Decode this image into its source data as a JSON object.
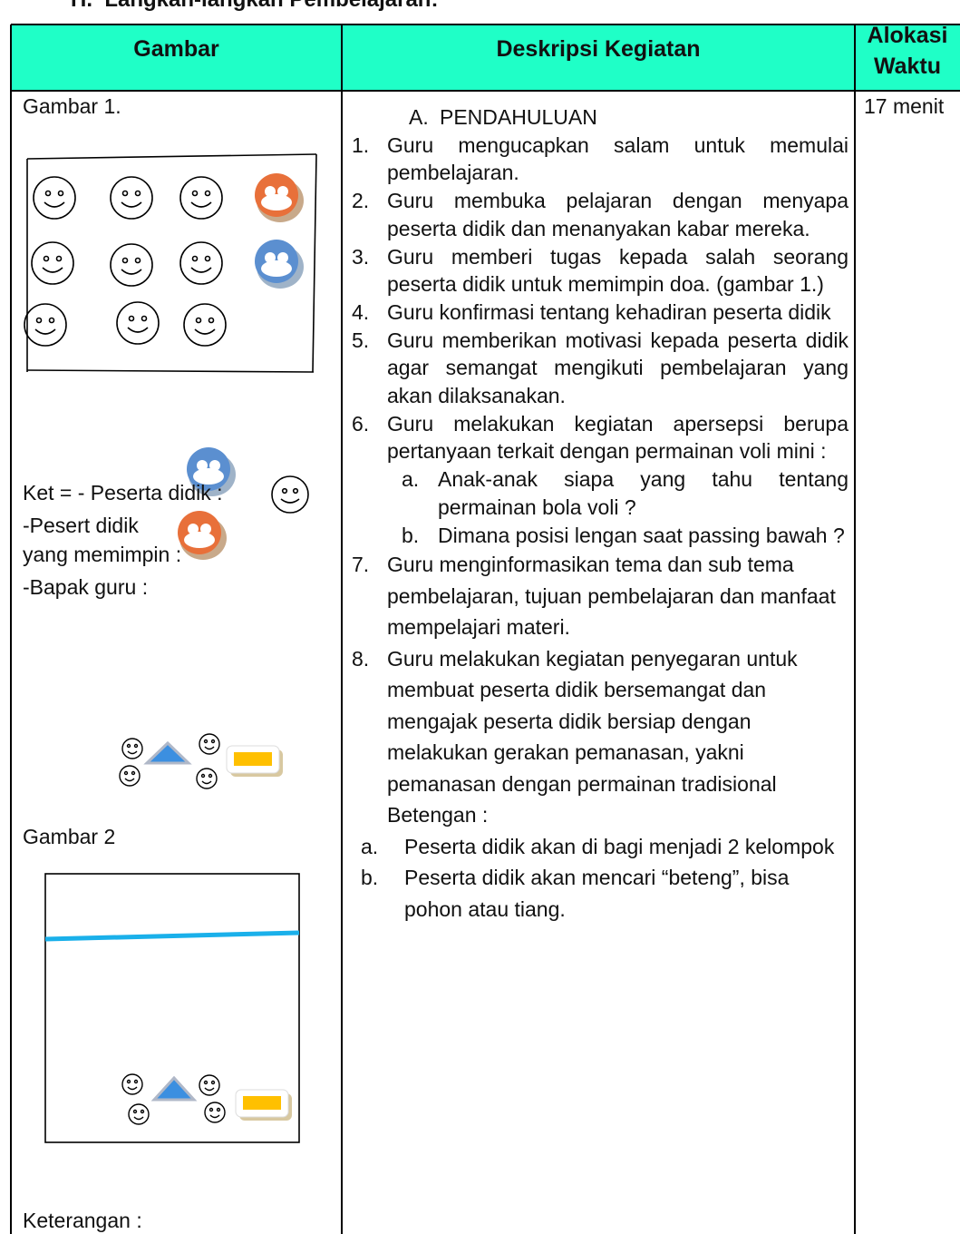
{
  "heading": {
    "number": "H.",
    "title": "Langkah-langkah Pembelajaran:"
  },
  "table": {
    "headers": [
      "Gambar",
      "Deskripsi Kegiatan",
      "Alokasi Waktu"
    ],
    "gambar": {
      "figure1_title": "Gambar 1.",
      "legend": [
        "Ket = - Peserta didik :",
        "-Pesert didik",
        "yang memimpin :",
        "-Bapak guru :"
      ],
      "figure2_title": "Gambar 2",
      "figure2_note": "Keterangan :"
    },
    "deskripsi": {
      "section_letter": "A.",
      "section_title": "PENDAHULUAN",
      "items": [
        {
          "number": "1.",
          "text": "Guru mengucapkan salam untuk memulai pembelajaran."
        },
        {
          "number": "2.",
          "text": "Guru membuka pelajaran dengan menyapa peserta didik dan menanyakan kabar mereka."
        },
        {
          "number": "3.",
          "text": "Guru memberi tugas kepada salah seorang peserta didik untuk memimpin doa. (gambar 1.)"
        },
        {
          "number": "4.",
          "text": "Guru konfirmasi tentang kehadiran peserta didik"
        },
        {
          "number": "5.",
          "text": "Guru memberikan motivasi kepada peserta didik agar semangat mengikuti pembelajaran yang akan dilaksanakan."
        },
        {
          "number": "6.",
          "text": "Guru melakukan kegiatan apersepsi berupa pertanyaan terkait dengan permainan voli mini :",
          "subitems": [
            {
              "letter": "a.",
              "text": "Anak-anak siapa yang tahu tentang permainan bola voli ?"
            },
            {
              "letter": "b.",
              "text": "Dimana posisi lengan saat passing bawah ?"
            }
          ]
        },
        {
          "number": "7.",
          "text": "Guru menginformasikan tema dan sub tema pembelajaran, tujuan pembelajaran dan manfaat mempelajari materi."
        },
        {
          "number": "8.",
          "text": "Guru melakukan kegiatan penyegaran untuk membuat peserta didik bersemangat dan mengajak peserta didik bersiap dengan melakukan gerakan pemanasan, yakni pemanasan dengan permainan tradisional Betengan :",
          "subitems": [
            {
              "letter": "a.",
              "text": "Peserta didik akan di bagi menjadi 2 kelompok"
            },
            {
              "letter": "b.",
              "text": "Peserta didik akan mencari “beteng”, bisa pohon atau tiang."
            }
          ]
        }
      ]
    },
    "alokasi": "17 menit"
  }
}
